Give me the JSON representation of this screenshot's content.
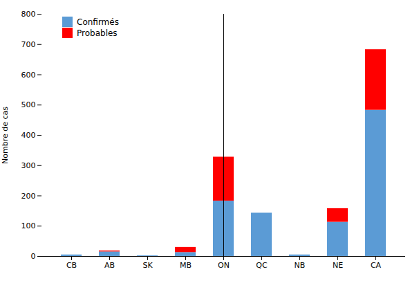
{
  "chart_data": {
    "type": "bar",
    "stacked": true,
    "categories": [
      "CB",
      "AB",
      "SK",
      "MB",
      "ON",
      "QC",
      "NB",
      "NE",
      "CA"
    ],
    "series": [
      {
        "name": "Confirmés",
        "color": "#5B9BD5",
        "values": [
          5,
          15,
          2,
          13,
          183,
          143,
          5,
          113,
          483
        ]
      },
      {
        "name": "Probables",
        "color": "#FF0000",
        "values": [
          0,
          3,
          0,
          17,
          145,
          0,
          0,
          45,
          200
        ]
      }
    ],
    "ylabel": "Nombre de cas",
    "ylim": [
      0,
      800
    ],
    "yticks": [
      0,
      100,
      200,
      300,
      400,
      500,
      600,
      700,
      800
    ],
    "grid": false,
    "legend": "upper left"
  }
}
